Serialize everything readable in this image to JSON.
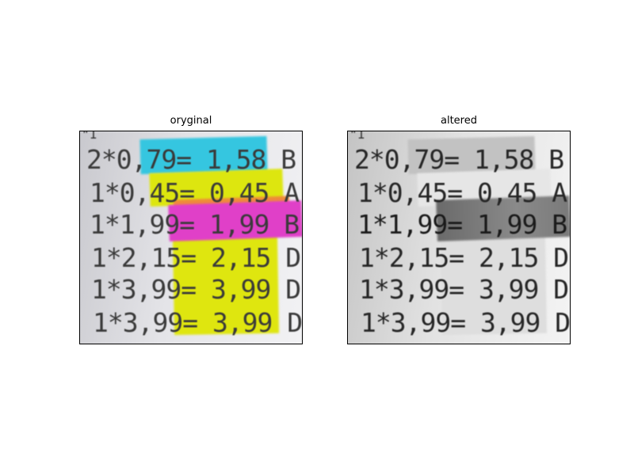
{
  "panels": {
    "original": {
      "title": "oryginal",
      "highlight_colors": {
        "cyan": "#35c6e0",
        "yellow": "#dfe60f",
        "orange": "#ef8a3a",
        "magenta": "#e040c8"
      }
    },
    "altered": {
      "title": "altered",
      "highlight_colors": {
        "dark_gray": "#6a6a6a",
        "mid_gray": "#a5a5a5",
        "light_gray": "#d2d2d2"
      }
    }
  },
  "receipt_lines": [
    "2*0,79= 1,58 B",
    "1*0,45= 0,45 A",
    "1*1,99= 1,99 B",
    "1*2,15= 2,15 D",
    "1*3,99= 3,99 D",
    "1*3,99= 3,99 D"
  ]
}
